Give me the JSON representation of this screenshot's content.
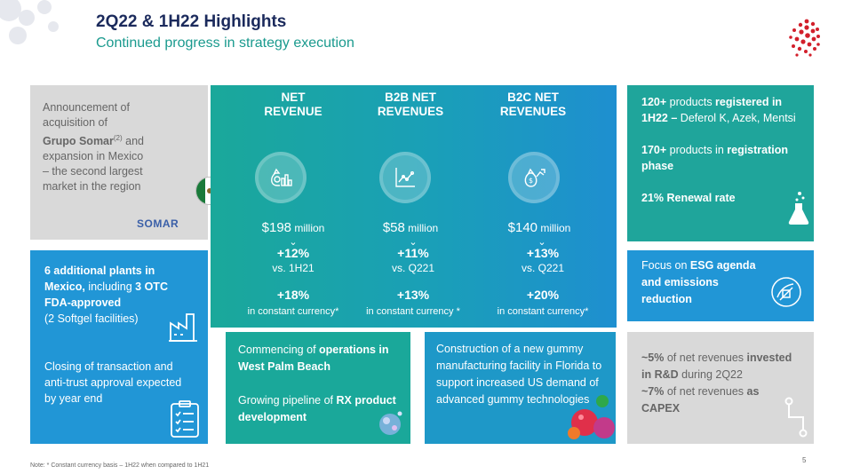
{
  "header": {
    "title": "2Q22 & 1H22 Highlights",
    "subtitle": "Continued progress in strategy execution"
  },
  "acquisition": {
    "line1": "Announcement of",
    "line2": "acquisition of",
    "company": "Grupo Somar",
    "sup": "(2)",
    "and": " and",
    "line4": "expansion in Mexico",
    "line5": "– the second largest",
    "line6": "market in the region",
    "logo_text": "SOMAR",
    "flag_icon": "mexico-flag-icon"
  },
  "metrics": [
    {
      "heading_1": "NET",
      "heading_2": "REVENUE",
      "icon": "money-bag-chart-icon",
      "amount": "$198",
      "unit": " million",
      "growth": "+12%",
      "vs": "vs. 1H21",
      "growth_cc": "+18%",
      "cc_label": "in constant currency*"
    },
    {
      "heading_1": "B2B NET",
      "heading_2": "REVENUES",
      "icon": "line-chart-icon",
      "amount": "$58",
      "unit": " million",
      "growth": "+11%",
      "vs": "vs. Q221",
      "growth_cc": "+13%",
      "cc_label": "in constant currency *"
    },
    {
      "heading_1": "B2C NET",
      "heading_2": "REVENUES",
      "icon": "money-bag-growth-icon",
      "amount": "$140",
      "unit": " million",
      "growth": "+13%",
      "vs": "vs. Q221",
      "growth_cc": "+20%",
      "cc_label": "in constant currency*"
    }
  ],
  "chevron": "⌄",
  "registration": {
    "p1_bold1": "120+",
    "p1_text1": " products ",
    "p1_bold2": "registered in 1H22 –",
    "p1_text2": " Deferol K, Azek, Mentsi",
    "p2_bold1": "170+",
    "p2_text1": " products in ",
    "p2_bold2": "registration phase",
    "p3_bold": "21% Renewal rate"
  },
  "esg": {
    "text1": "Focus on ",
    "bold1": "ESG agenda and emissions reduction"
  },
  "rnd": {
    "bold1": "~5%",
    "text1": " of net revenues ",
    "bold2": "invested in R&D",
    "text2": " during 2Q22",
    "bold3": "~7%",
    "text3": " of net revenues ",
    "bold4": "as CAPEX"
  },
  "plants": {
    "bold1": "6 additional plants in Mexico,",
    "text1": " including ",
    "bold2": "3 OTC FDA-approved",
    "text2": "(2 Softgel facilities)",
    "text3": "Closing of transaction and anti-trust approval expected by year end"
  },
  "operations": {
    "text1": "Commencing of ",
    "bold1": "operations in West Palm Beach",
    "text2": "Growing pipeline of ",
    "bold2": "RX product development"
  },
  "gummy": {
    "text": "Construction of a new gummy manufacturing facility in Florida to support increased US demand of advanced gummy technologies"
  },
  "footer": {
    "note": "Note: * Constant currency basis – 1H22 when compared to 1H21",
    "page": "5"
  },
  "colors": {
    "navy": "#1b2a5c",
    "teal": "#1aa89a",
    "blue": "#2196d6",
    "grey": "#d9d9d9",
    "logo_red": "#d21f2b"
  }
}
